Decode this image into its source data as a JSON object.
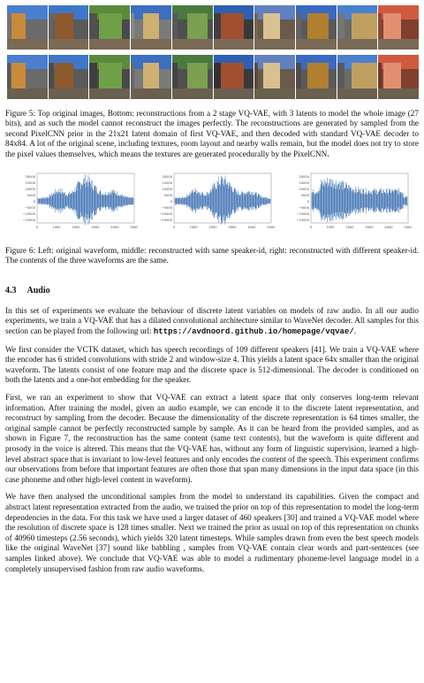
{
  "figure5": {
    "caption": "Figure 5: Top original images, Bottom: reconstructions from a 2 stage VQ-VAE, with 3 latents to model the whole image (27 bits), and as such the model cannot reconstruct the images perfectly. The reconstructions are generated by sampled from the second PixelCNN prior in the 21x21 latent domain of first VQ-VAE, and then decoded with standard VQ-VAE decoder to 84x84. A lot of the original scene, including textures, room layout and nearby walls remain, but the model does not try to store the pixel values themselves, which means the textures are generated procedurally by the PixelCNN."
  },
  "figure6": {
    "caption": "Figure 6: Left: original waveform, middle: reconstructed with same speaker-id, right: reconstructed with different speaker-id. The contents of the three waveforms are the same.",
    "panels": [
      {
        "yticks": [
          "20000",
          "15000",
          "10000",
          "5000",
          "0",
          "−5000",
          "−10000",
          "−15000"
        ],
        "xticks": [
          "0",
          "1000",
          "2000",
          "3000",
          "4000",
          "5000"
        ]
      },
      {
        "yticks": [
          "20000",
          "15000",
          "10000",
          "5000",
          "0",
          "−5000",
          "−10000",
          "−15000"
        ],
        "xticks": [
          "0",
          "1000",
          "2000",
          "3000",
          "4000",
          "5000"
        ]
      },
      {
        "yticks": [
          "20000",
          "15000",
          "10000",
          "5000",
          "0",
          "−5000",
          "−10000",
          "−15000"
        ],
        "xticks": [
          "0",
          "1000",
          "2000",
          "3000",
          "4000",
          "5000"
        ]
      }
    ]
  },
  "section": {
    "number": "4.3",
    "title": "Audio"
  },
  "paragraphs": {
    "p1_text": "In this set of experiments we evaluate the behaviour of discrete latent variables on models of raw audio. In all our audio experiments, we train a VQ-VAE that has a dilated convolutional architecture similar to WaveNet decoder. All samples for this section can be played from the following url: ",
    "p1_url": "https://avdnoord.github.io/homepage/vqvae/",
    "p1_end": ".",
    "p2": "We first consider the VCTK dataset, which has speech recordings of 109 different speakers [41]. We train a VQ-VAE where the encoder has 6 strided convolutions with stride 2 and window-size 4. This yields a latent space 64x smaller than the original waveform. The latents consist of one feature map and the discrete space is 512-dimensional. The decoder is conditioned on both the latents and a one-hot embedding for the speaker.",
    "p3": "First, we ran an experiment to show that VQ-VAE can extract a latent space that only conserves long-term relevant information. After training the model, given an audio example, we can encode it to the discrete latent representation, and reconstruct by sampling from the decoder. Because the dimensionality of the discrete representation is 64 times smaller, the original sample cannot be perfectly reconstructed sample by sample. As it can be heard from the provided samples, and as shown in Figure 7, the reconstruction has the same content (same text contents), but the waveform is quite different and prosody in the voice is altered. This means that the VQ-VAE has, without any form of linguistic supervision, learned a high-level abstract space that is invariant to low-level features and only encodes the content of the speech. This experiment confirms our observations from before that important features are often those that span many dimensions in the input data space (in this case phoneme and other high-level content in waveform).",
    "p4": "We have then analysed the unconditional samples from the model to understand its capabilities. Given the compact and abstract latent representation extracted from the audio, we trained the prior on top of this representation to model the long-term dependencies in the data. For this task we have used a larger dataset of 460 speakers [30] and trained a VQ-VAE model where the resolution of discrete space is 128 times smaller. Next we trained the prior as usual on top of this representation on chunks of 40960 timesteps (2.56 seconds), which yields 320 latent timesteps. While samples drawn from even the best speech models like the original WaveNet [37] sound like babbling , samples from VQ-VAE contain clear words and part-sentences (see samples linked above). We conclude that VQ-VAE was able to model a rudimentary phoneme-level language model in a completely unsupervised fashion from raw audio waveforms."
  },
  "colors": {
    "waveform": "#3b6fb0",
    "text": "#111111"
  }
}
